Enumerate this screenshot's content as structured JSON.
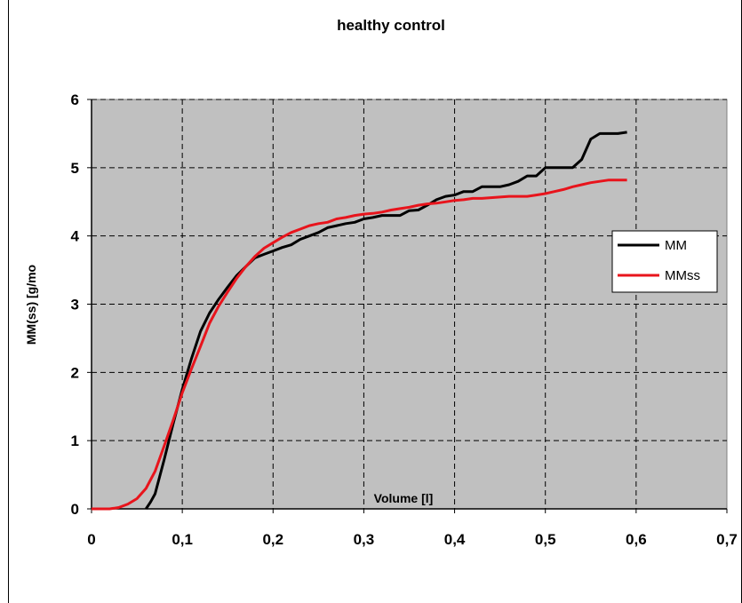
{
  "chart_data": {
    "type": "line",
    "title": "healthy control",
    "xlabel": "Volume [l]",
    "ylabel": "MM(ss) [g/mo",
    "xlim": [
      0,
      0.7
    ],
    "ylim": [
      0,
      6
    ],
    "x_ticks": [
      "0",
      "0,1",
      "0,2",
      "0,3",
      "0,4",
      "0,5",
      "0,6",
      "0,7"
    ],
    "y_ticks": [
      "0",
      "1",
      "2",
      "3",
      "4",
      "5",
      "6"
    ],
    "grid": true,
    "legend_position": "right",
    "background": "#c0c0c0",
    "series": [
      {
        "name": "MM",
        "color": "#000000",
        "points": [
          [
            0.06,
            0
          ],
          [
            0.065,
            0.1
          ],
          [
            0.07,
            0.22
          ],
          [
            0.08,
            0.72
          ],
          [
            0.09,
            1.25
          ],
          [
            0.1,
            1.75
          ],
          [
            0.11,
            2.2
          ],
          [
            0.12,
            2.6
          ],
          [
            0.13,
            2.87
          ],
          [
            0.14,
            3.07
          ],
          [
            0.15,
            3.25
          ],
          [
            0.16,
            3.42
          ],
          [
            0.17,
            3.55
          ],
          [
            0.18,
            3.68
          ],
          [
            0.19,
            3.73
          ],
          [
            0.2,
            3.78
          ],
          [
            0.21,
            3.83
          ],
          [
            0.22,
            3.87
          ],
          [
            0.23,
            3.95
          ],
          [
            0.24,
            4.0
          ],
          [
            0.25,
            4.05
          ],
          [
            0.26,
            4.12
          ],
          [
            0.27,
            4.15
          ],
          [
            0.28,
            4.18
          ],
          [
            0.29,
            4.2
          ],
          [
            0.3,
            4.25
          ],
          [
            0.31,
            4.27
          ],
          [
            0.32,
            4.3
          ],
          [
            0.33,
            4.3
          ],
          [
            0.34,
            4.3
          ],
          [
            0.35,
            4.37
          ],
          [
            0.36,
            4.38
          ],
          [
            0.37,
            4.45
          ],
          [
            0.38,
            4.53
          ],
          [
            0.39,
            4.58
          ],
          [
            0.4,
            4.6
          ],
          [
            0.41,
            4.65
          ],
          [
            0.42,
            4.65
          ],
          [
            0.43,
            4.72
          ],
          [
            0.44,
            4.72
          ],
          [
            0.45,
            4.72
          ],
          [
            0.46,
            4.75
          ],
          [
            0.47,
            4.8
          ],
          [
            0.48,
            4.88
          ],
          [
            0.49,
            4.88
          ],
          [
            0.5,
            5.0
          ],
          [
            0.51,
            5.0
          ],
          [
            0.52,
            5.0
          ],
          [
            0.53,
            5.0
          ],
          [
            0.54,
            5.12
          ],
          [
            0.55,
            5.42
          ],
          [
            0.56,
            5.5
          ],
          [
            0.57,
            5.5
          ],
          [
            0.58,
            5.5
          ],
          [
            0.59,
            5.52
          ]
        ]
      },
      {
        "name": "MMss",
        "color": "#e8141c",
        "points": [
          [
            0,
            0
          ],
          [
            0.01,
            0
          ],
          [
            0.02,
            0
          ],
          [
            0.03,
            0.02
          ],
          [
            0.04,
            0.07
          ],
          [
            0.05,
            0.15
          ],
          [
            0.06,
            0.3
          ],
          [
            0.07,
            0.55
          ],
          [
            0.08,
            0.92
          ],
          [
            0.09,
            1.3
          ],
          [
            0.1,
            1.7
          ],
          [
            0.11,
            2.05
          ],
          [
            0.12,
            2.38
          ],
          [
            0.13,
            2.72
          ],
          [
            0.14,
            2.97
          ],
          [
            0.15,
            3.18
          ],
          [
            0.16,
            3.38
          ],
          [
            0.17,
            3.55
          ],
          [
            0.18,
            3.7
          ],
          [
            0.19,
            3.82
          ],
          [
            0.2,
            3.9
          ],
          [
            0.21,
            3.98
          ],
          [
            0.22,
            4.05
          ],
          [
            0.23,
            4.1
          ],
          [
            0.24,
            4.15
          ],
          [
            0.25,
            4.18
          ],
          [
            0.26,
            4.2
          ],
          [
            0.27,
            4.25
          ],
          [
            0.28,
            4.27
          ],
          [
            0.29,
            4.3
          ],
          [
            0.3,
            4.32
          ],
          [
            0.31,
            4.33
          ],
          [
            0.32,
            4.35
          ],
          [
            0.33,
            4.38
          ],
          [
            0.34,
            4.4
          ],
          [
            0.35,
            4.42
          ],
          [
            0.36,
            4.45
          ],
          [
            0.37,
            4.47
          ],
          [
            0.38,
            4.48
          ],
          [
            0.39,
            4.5
          ],
          [
            0.4,
            4.52
          ],
          [
            0.41,
            4.53
          ],
          [
            0.42,
            4.55
          ],
          [
            0.43,
            4.55
          ],
          [
            0.44,
            4.56
          ],
          [
            0.45,
            4.57
          ],
          [
            0.46,
            4.58
          ],
          [
            0.47,
            4.58
          ],
          [
            0.48,
            4.58
          ],
          [
            0.49,
            4.6
          ],
          [
            0.5,
            4.62
          ],
          [
            0.51,
            4.65
          ],
          [
            0.52,
            4.68
          ],
          [
            0.53,
            4.72
          ],
          [
            0.54,
            4.75
          ],
          [
            0.55,
            4.78
          ],
          [
            0.56,
            4.8
          ],
          [
            0.57,
            4.82
          ],
          [
            0.58,
            4.82
          ],
          [
            0.59,
            4.82
          ]
        ]
      }
    ]
  }
}
